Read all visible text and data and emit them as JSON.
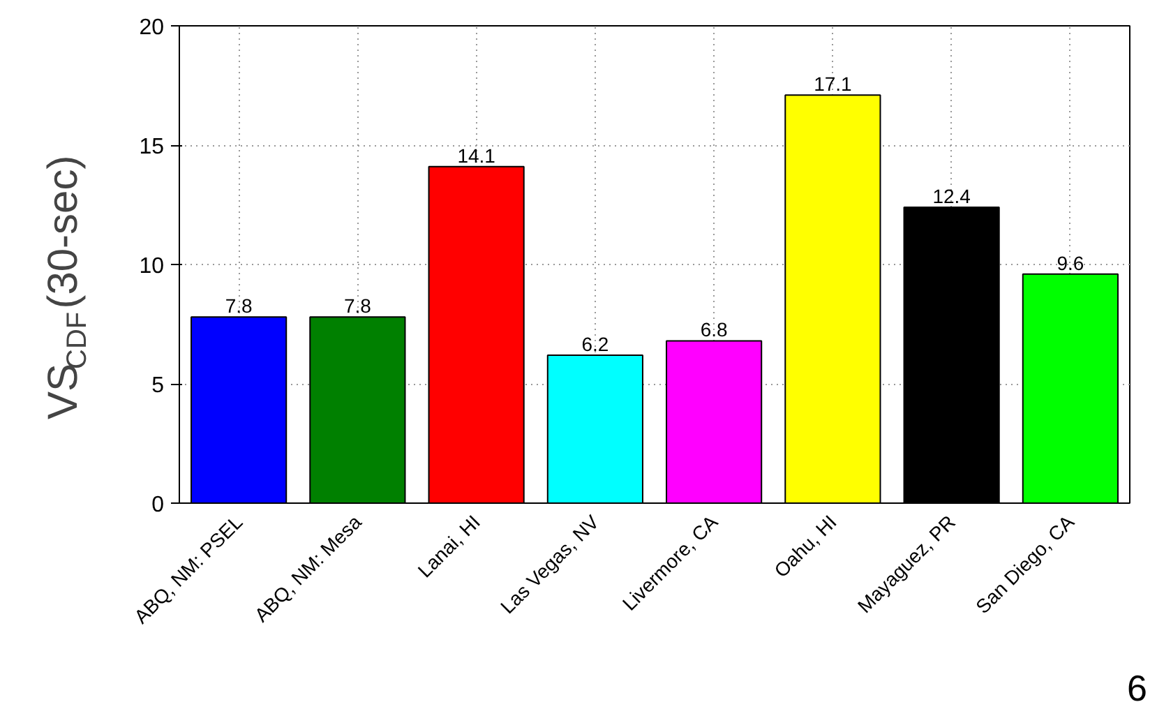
{
  "chart_data": {
    "type": "bar",
    "ylabel": "VS$_{CDF}$(30-sec)",
    "categories": [
      "ABQ, NM: PSEL",
      "ABQ, NM: Mesa",
      "Lanai, HI",
      "Las Vegas, NV",
      "Livermore, CA",
      "Oahu, HI",
      "Mayaguez, PR",
      "San Diego, CA"
    ],
    "values": [
      7.8,
      7.8,
      14.1,
      6.2,
      6.8,
      17.1,
      12.4,
      9.6
    ],
    "colors": [
      "#0000ff",
      "#008000",
      "#ff0000",
      "#00ffff",
      "#ff00ff",
      "#ffff00",
      "#000000",
      "#00ff00"
    ],
    "ylim": [
      0,
      20
    ],
    "yticks": [
      0,
      5,
      10,
      15,
      20
    ],
    "grid": true,
    "data_labels": true,
    "annotations": [
      "6"
    ]
  }
}
